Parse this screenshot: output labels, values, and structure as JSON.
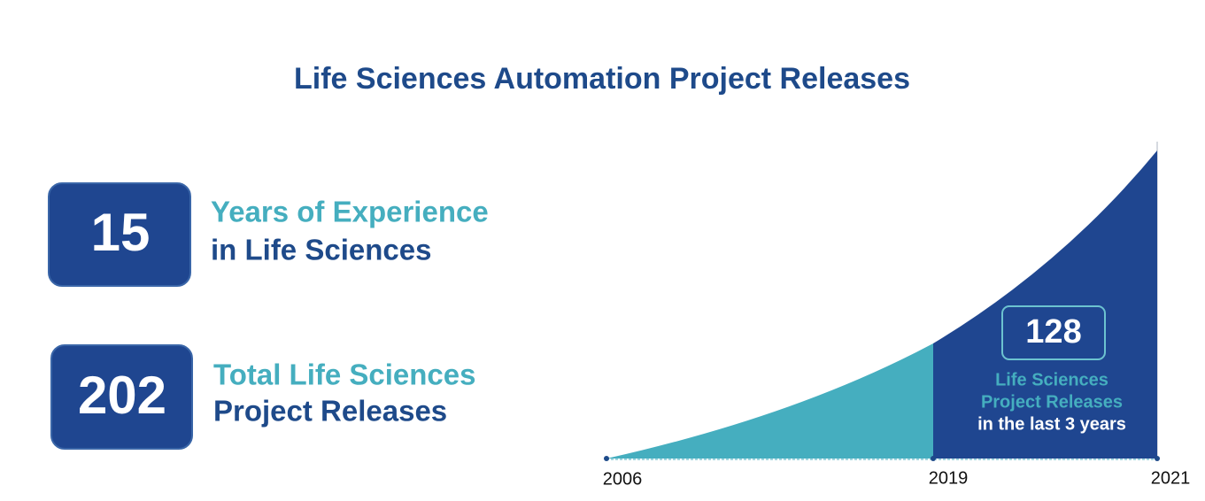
{
  "title": "Life Sciences Automation Project Releases",
  "stats": [
    {
      "value": 15,
      "line1": "Years of Experience",
      "line2": "in Life Sciences"
    },
    {
      "value": 202,
      "line1": "Total Life Sciences",
      "line2": "Project Releases"
    }
  ],
  "callout": {
    "value": 128,
    "line1": "Life Sciences",
    "line2": "Project Releases",
    "line3": "in the last 3 years"
  },
  "timeline": [
    "2006",
    "2019",
    "2021"
  ]
}
